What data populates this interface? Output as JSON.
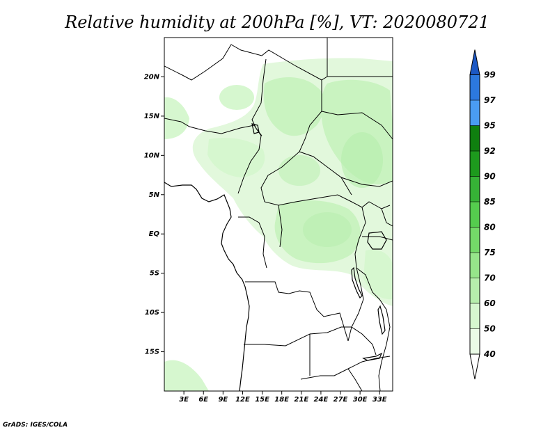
{
  "title": "Relative humidity at 200hPa [%], VT: 2020080721",
  "credit": "GrADS: IGES/COLA",
  "map": {
    "lon_range": [
      0,
      35
    ],
    "lat_range": [
      -20,
      25
    ],
    "x_ticks": [
      "3E",
      "6E",
      "9E",
      "12E",
      "15E",
      "18E",
      "21E",
      "24E",
      "27E",
      "30E",
      "33E"
    ],
    "y_ticks": [
      "20N",
      "15N",
      "10N",
      "5N",
      "EQ",
      "5S",
      "10S",
      "15S"
    ]
  },
  "colorbar": {
    "levels": [
      "40",
      "50",
      "60",
      "70",
      "75",
      "80",
      "85",
      "90",
      "92",
      "95",
      "97",
      "99"
    ],
    "colors": [
      "#ffffff",
      "#eafbe6",
      "#d6f7cf",
      "#b6eeac",
      "#96e58a",
      "#74da68",
      "#55cc4e",
      "#36b336",
      "#1d9a1d",
      "#0f7f0f",
      "#4a9cf2",
      "#2c78de",
      "#1c58c4"
    ]
  }
}
